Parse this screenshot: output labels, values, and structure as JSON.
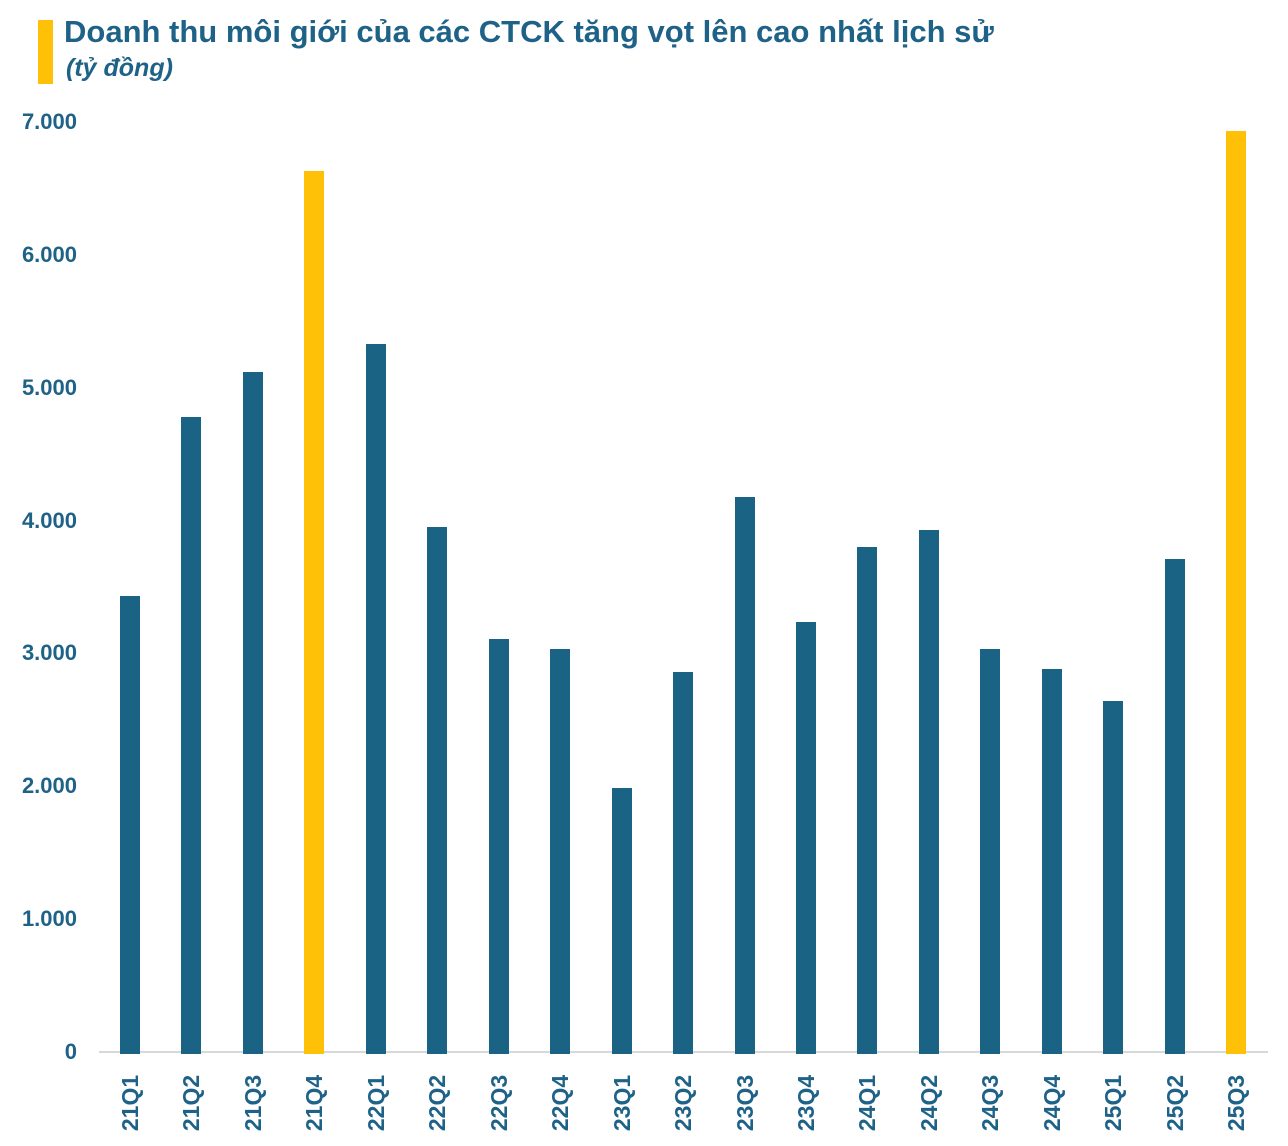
{
  "header": {
    "title": "Doanh thu môi giới của các CTCK tăng vọt lên cao nhất lịch sử",
    "subtitle": "(tỷ đồng)"
  },
  "colors": {
    "bar": "#1B6384",
    "highlight": "#FFC107",
    "text": "#1F6288",
    "axis_line": "#D8D8D8",
    "background": "#FFFFFF"
  },
  "chart_data": {
    "type": "bar",
    "title": "Doanh thu môi giới của các CTCK tăng vọt lên cao nhất lịch sử",
    "unit_label": "(tỷ đồng)",
    "categories": [
      "21Q1",
      "21Q2",
      "21Q3",
      "21Q4",
      "22Q1",
      "22Q2",
      "22Q3",
      "22Q4",
      "23Q1",
      "23Q2",
      "23Q3",
      "23Q4",
      "24Q1",
      "24Q2",
      "24Q3",
      "24Q4",
      "25Q1",
      "25Q2",
      "25Q3"
    ],
    "values": [
      3430,
      4780,
      5120,
      6630,
      5330,
      3950,
      3110,
      3030,
      1990,
      2860,
      4180,
      3240,
      3800,
      3930,
      3030,
      2880,
      2640,
      3710,
      6930
    ],
    "highlight_categories": [
      "21Q4",
      "25Q3"
    ],
    "xlabel": "",
    "ylabel": "",
    "ylim": [
      0,
      7000
    ],
    "y_ticks": [
      {
        "value": 0,
        "label": "0"
      },
      {
        "value": 1000,
        "label": "1.000"
      },
      {
        "value": 2000,
        "label": "2.000"
      },
      {
        "value": 3000,
        "label": "3.000"
      },
      {
        "value": 4000,
        "label": "4.000"
      },
      {
        "value": 5000,
        "label": "5.000"
      },
      {
        "value": 6000,
        "label": "6.000"
      },
      {
        "value": 7000,
        "label": "7.000"
      }
    ],
    "grid": false,
    "legend": false
  }
}
